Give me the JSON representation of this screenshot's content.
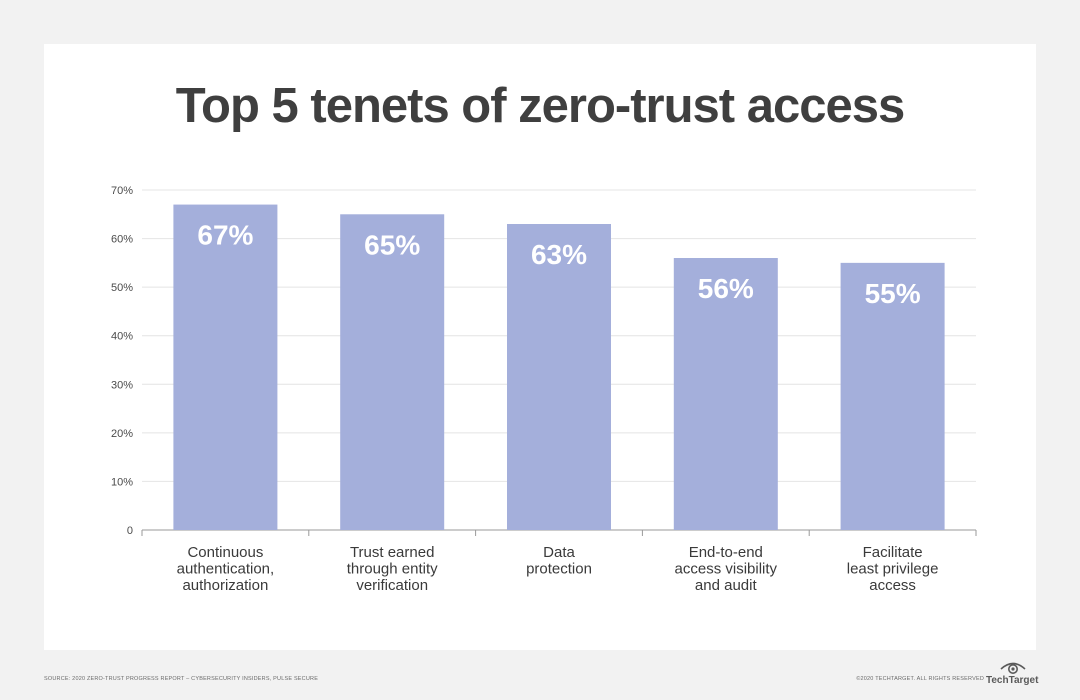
{
  "title": "Top 5 tenets of zero-trust access",
  "chart_data": {
    "type": "bar",
    "title": "Top 5 tenets of zero-trust access",
    "categories": [
      [
        "Continuous",
        "authentication,",
        "authorization"
      ],
      [
        "Trust earned",
        "through entity",
        "verification"
      ],
      [
        "Data",
        "protection"
      ],
      [
        "End-to-end",
        "access visibility",
        "and audit"
      ],
      [
        "Facilitate",
        "least privilege",
        "access"
      ]
    ],
    "values": [
      67,
      65,
      63,
      56,
      55
    ],
    "data_labels": [
      "67%",
      "65%",
      "63%",
      "56%",
      "55%"
    ],
    "y_ticks": [
      0,
      10,
      20,
      30,
      40,
      50,
      60,
      70
    ],
    "y_tick_labels": [
      "0",
      "10%",
      "20%",
      "30%",
      "40%",
      "50%",
      "60%",
      "70%"
    ],
    "ylim": [
      0,
      70
    ],
    "grid": true,
    "bar_color": "#a4afdb",
    "xlabel": "",
    "ylabel": ""
  },
  "footer": {
    "source": "SOURCE: 2020 ZERO-TRUST PROGRESS REPORT – CYBERSECURITY INSIDERS, PULSE SECURE",
    "copyright": "©2020 TECHTARGET. ALL RIGHTS RESERVED",
    "brand": "TechTarget",
    "brand_icon": "eye-logo-icon"
  }
}
